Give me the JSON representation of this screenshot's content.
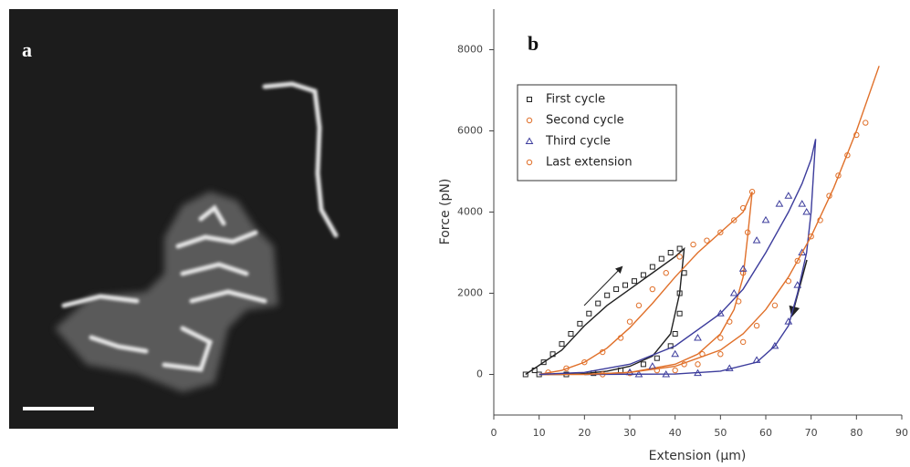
{
  "panel_labels": [
    "a",
    "b"
  ],
  "chart_data": {
    "type": "scatter",
    "xlabel": "Extension (µm)",
    "ylabel": "Force (pN)",
    "xlim": [
      0,
      90
    ],
    "xticks": [
      0,
      10,
      20,
      30,
      40,
      50,
      60,
      70,
      80,
      90
    ],
    "ylim": [
      -1000,
      9000
    ],
    "yticks": [
      0,
      2000,
      4000,
      6000,
      8000
    ],
    "grid": false,
    "legend": "upper-left",
    "series": [
      {
        "name": "First cycle",
        "color": "#222222",
        "marker": "square",
        "x": [
          7,
          9,
          11,
          13,
          15,
          17,
          19,
          21,
          23,
          25,
          27,
          29,
          31,
          33,
          35,
          37,
          39,
          41,
          42,
          41,
          41,
          40,
          39,
          36,
          33,
          28,
          22,
          16,
          10
        ],
        "values": [
          0,
          100,
          300,
          500,
          750,
          1000,
          1250,
          1500,
          1750,
          1950,
          2100,
          2200,
          2300,
          2450,
          2650,
          2850,
          3000,
          3100,
          2500,
          2000,
          1500,
          1000,
          700,
          400,
          250,
          100,
          30,
          0,
          0
        ],
        "fit": {
          "x": [
            7,
            15,
            20,
            25,
            30,
            35,
            40,
            42,
            41,
            39,
            35,
            30,
            25,
            20,
            15,
            10
          ],
          "values": [
            0,
            600,
            1200,
            1700,
            2100,
            2500,
            2900,
            3100,
            2000,
            1000,
            450,
            200,
            80,
            20,
            0,
            0
          ]
        }
      },
      {
        "name": "Second cycle",
        "color": "#e0702a",
        "marker": "circle",
        "x": [
          12,
          16,
          20,
          24,
          28,
          30,
          32,
          35,
          38,
          41,
          44,
          47,
          50,
          53,
          55,
          57,
          56,
          55,
          54,
          52,
          50,
          46,
          42,
          36,
          30,
          24
        ],
        "values": [
          50,
          150,
          300,
          550,
          900,
          1300,
          1700,
          2100,
          2500,
          2900,
          3200,
          3300,
          3500,
          3800,
          4100,
          4500,
          3500,
          2500,
          1800,
          1300,
          900,
          500,
          250,
          100,
          30,
          0
        ],
        "fit": {
          "x": [
            10,
            15,
            20,
            25,
            30,
            35,
            40,
            45,
            50,
            55,
            57,
            56,
            55,
            53,
            50,
            45,
            40,
            30,
            20,
            10
          ],
          "values": [
            0,
            100,
            300,
            650,
            1150,
            1750,
            2400,
            3000,
            3500,
            4000,
            4500,
            3400,
            2400,
            1600,
            1000,
            500,
            250,
            50,
            0,
            0
          ]
        }
      },
      {
        "name": "Third cycle",
        "color": "#3c3c9c",
        "marker": "triangle",
        "x": [
          30,
          35,
          40,
          45,
          50,
          53,
          55,
          58,
          60,
          63,
          65,
          68,
          69,
          68,
          67,
          65,
          62,
          58,
          52,
          45,
          38,
          32
        ],
        "values": [
          50,
          200,
          500,
          900,
          1500,
          2000,
          2600,
          3300,
          3800,
          4200,
          4400,
          4200,
          4000,
          3000,
          2200,
          1300,
          700,
          350,
          150,
          30,
          0,
          0
        ],
        "fit": {
          "x": [
            10,
            20,
            30,
            40,
            50,
            55,
            60,
            65,
            68,
            70,
            71,
            70,
            69,
            67,
            65,
            62,
            58,
            50,
            40,
            20
          ],
          "values": [
            0,
            50,
            250,
            700,
            1500,
            2100,
            3000,
            4000,
            4700,
            5300,
            5800,
            4000,
            3000,
            2000,
            1200,
            700,
            300,
            80,
            10,
            0
          ]
        }
      },
      {
        "name": "Last extension",
        "color": "#e0702a",
        "marker": "circle",
        "x": [
          40,
          45,
          50,
          55,
          58,
          62,
          65,
          67,
          70,
          72,
          74,
          76,
          78,
          80,
          82
        ],
        "values": [
          100,
          250,
          500,
          800,
          1200,
          1700,
          2300,
          2800,
          3400,
          3800,
          4400,
          4900,
          5400,
          5900,
          6200
        ],
        "fit": {
          "x": [
            20,
            30,
            40,
            50,
            55,
            60,
            65,
            70,
            75,
            80,
            85
          ],
          "values": [
            0,
            50,
            200,
            600,
            1000,
            1600,
            2400,
            3400,
            4600,
            6000,
            7600
          ]
        }
      }
    ]
  }
}
